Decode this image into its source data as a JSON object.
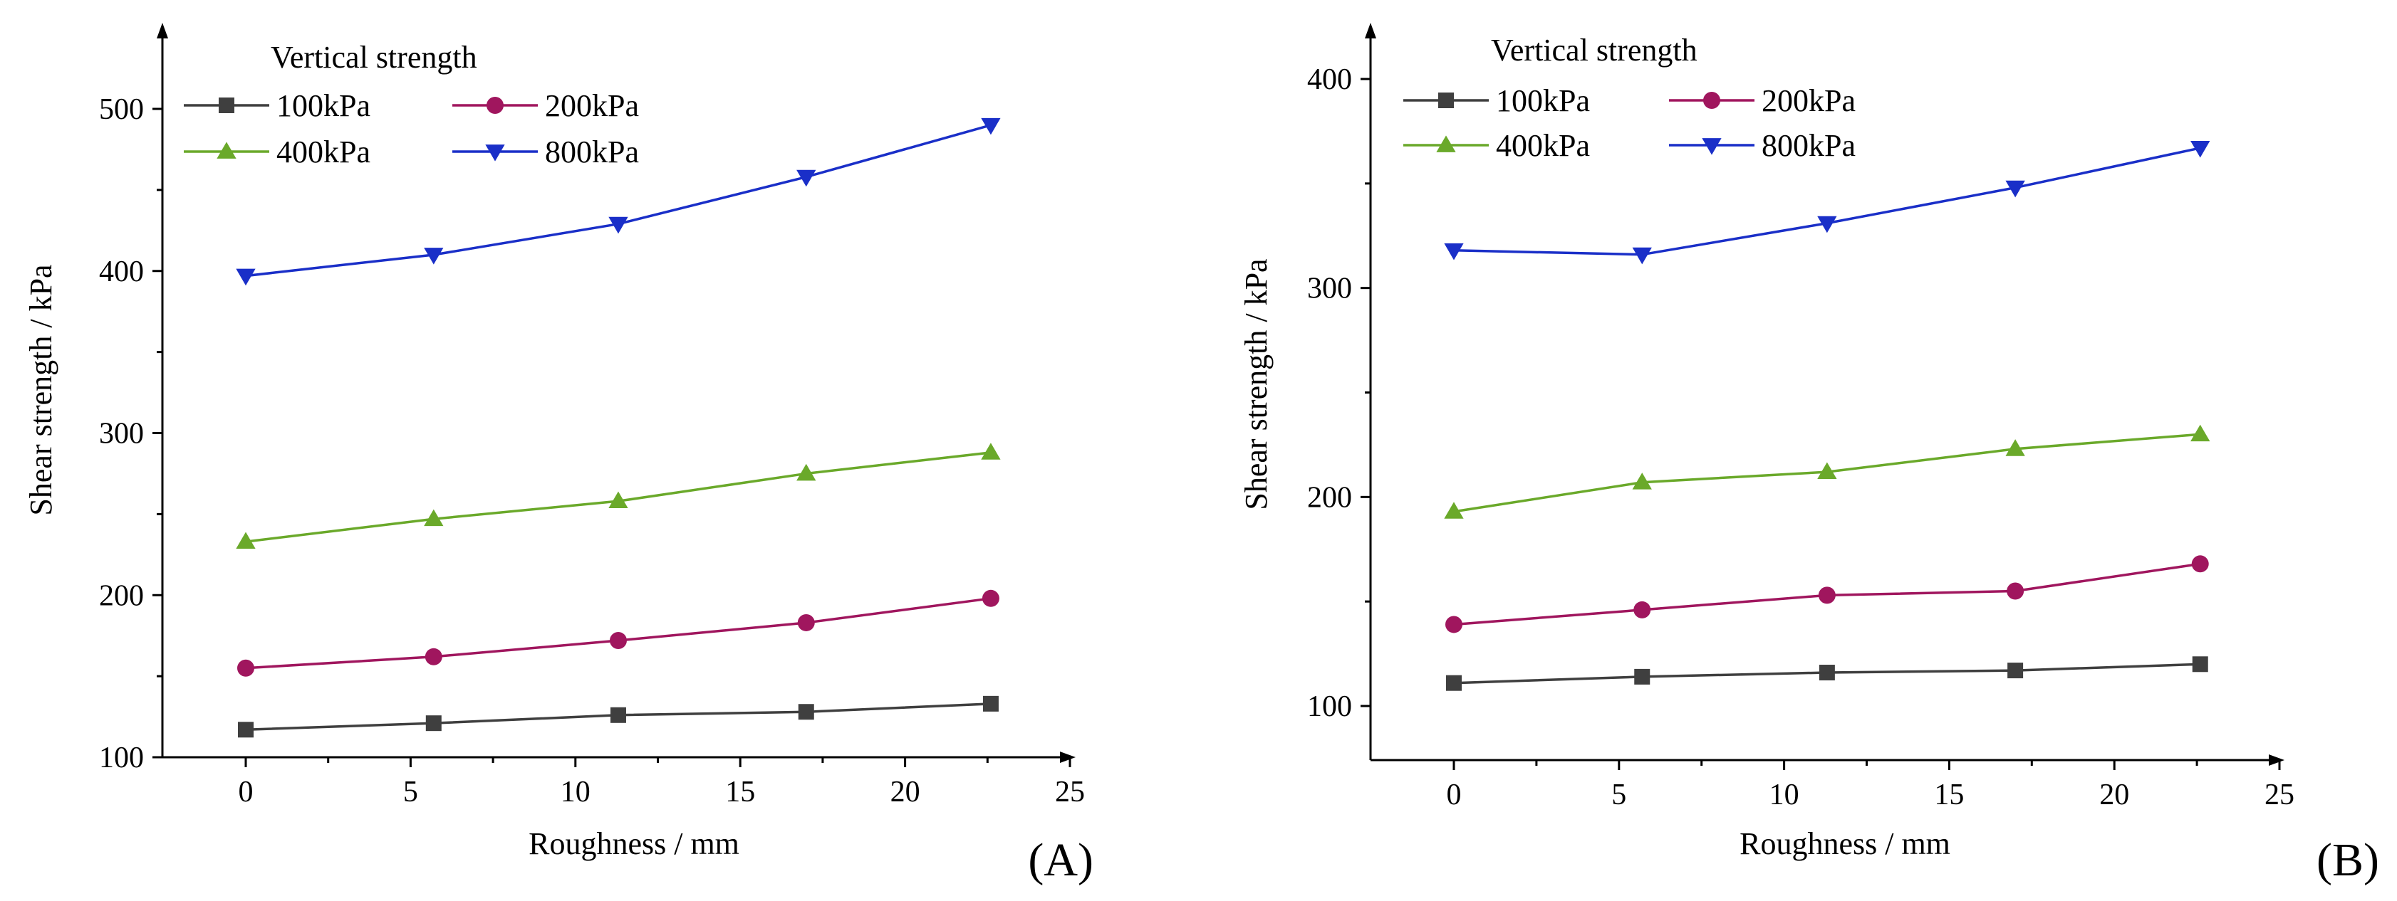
{
  "chart_data": [
    {
      "type": "line",
      "panel_label": "(A)",
      "xlabel": "Roughness / mm",
      "ylabel": "Shear strength / kPa",
      "legend_title": "Vertical strength",
      "xlim": [
        -2.5,
        25
      ],
      "ylim": [
        100,
        545
      ],
      "xticks": [
        0,
        5,
        10,
        15,
        20,
        25
      ],
      "yticks": [
        100,
        200,
        300,
        400,
        500
      ],
      "x": [
        0,
        5.7,
        11.3,
        17.0,
        22.6
      ],
      "series": [
        {
          "name": "100kPa",
          "color": "#3f3f3f",
          "marker": "square",
          "values": [
            117,
            121,
            126,
            128,
            133
          ]
        },
        {
          "name": "200kPa",
          "color": "#a0165e",
          "marker": "circle",
          "values": [
            155,
            162,
            172,
            183,
            198
          ]
        },
        {
          "name": "400kPa",
          "color": "#6aa92a",
          "marker": "triangle-up",
          "values": [
            233,
            247,
            258,
            275,
            288
          ]
        },
        {
          "name": "800kPa",
          "color": "#1a2fc8",
          "marker": "triangle-down",
          "values": [
            397,
            410,
            429,
            458,
            490
          ]
        }
      ]
    },
    {
      "type": "line",
      "panel_label": "(B)",
      "xlabel": "Roughness / mm",
      "ylabel": "Shear strength / kPa",
      "legend_title": "Vertical strength",
      "xlim": [
        -2.5,
        25
      ],
      "ylim": [
        75,
        425
      ],
      "xticks": [
        0,
        5,
        10,
        15,
        20,
        25
      ],
      "yticks": [
        100,
        200,
        300,
        400
      ],
      "x": [
        0,
        5.7,
        11.3,
        17.0,
        22.6
      ],
      "series": [
        {
          "name": "100kPa",
          "color": "#3f3f3f",
          "marker": "square",
          "values": [
            111,
            114,
            116,
            117,
            120
          ]
        },
        {
          "name": "200kPa",
          "color": "#a0165e",
          "marker": "circle",
          "values": [
            139,
            146,
            153,
            155,
            168
          ]
        },
        {
          "name": "400kPa",
          "color": "#6aa92a",
          "marker": "triangle-up",
          "values": [
            193,
            207,
            212,
            223,
            230
          ]
        },
        {
          "name": "800kPa",
          "color": "#1a2fc8",
          "marker": "triangle-down",
          "values": [
            318,
            316,
            331,
            348,
            367
          ]
        }
      ]
    }
  ]
}
